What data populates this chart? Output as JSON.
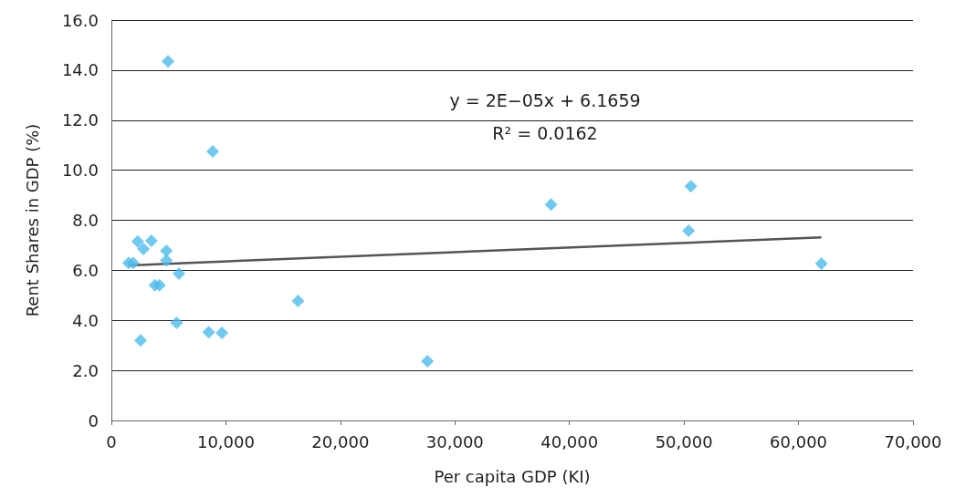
{
  "chart_data": {
    "type": "scatter",
    "xlabel": "Per capita GDP (KI)",
    "ylabel": "Rent Shares in GDP (%)",
    "xlim": [
      0,
      70000
    ],
    "ylim": [
      0,
      16
    ],
    "xticks": [
      0,
      {
        "value": 10000,
        "label": "10,000"
      },
      {
        "value": 20000,
        "label": "20,000"
      },
      {
        "value": 30000,
        "label": "30,000"
      },
      {
        "value": 40000,
        "label": "40,000"
      },
      {
        "value": 50000,
        "label": "50,000"
      },
      {
        "value": 60000,
        "label": "60,000"
      },
      {
        "value": 70000,
        "label": "70,000"
      }
    ],
    "yticks": [
      0,
      {
        "value": 2,
        "label": "2.0"
      },
      {
        "value": 4,
        "label": "4.0"
      },
      {
        "value": 6,
        "label": "6.0"
      },
      {
        "value": 8,
        "label": "8.0"
      },
      {
        "value": 10,
        "label": "10.0"
      },
      {
        "value": 12,
        "label": "12.0"
      },
      {
        "value": 14,
        "label": "14.0"
      },
      {
        "value": 16,
        "label": "16.0"
      }
    ],
    "grid": "y",
    "marker": "diamond",
    "annotations": [
      "y = 2E−05x + 6.1659",
      "R² = 0.0162"
    ],
    "series": [
      {
        "color": "#4dbbeb",
        "x": [
          1500,
          1900,
          2300,
          2800,
          3500,
          4800,
          4800,
          5900,
          3800,
          4200,
          5700,
          2550,
          8500,
          9650,
          16300,
          4950,
          8850,
          27600,
          38400,
          50400,
          50600,
          62000
        ],
        "values": [
          6.3,
          6.3,
          7.15,
          6.85,
          7.18,
          6.78,
          6.4,
          5.87,
          5.4,
          5.4,
          3.9,
          3.2,
          3.53,
          3.5,
          4.77,
          14.35,
          10.75,
          2.37,
          8.63,
          7.58,
          9.36,
          6.27
        ]
      },
      {
        "type": "line",
        "color": "#555555",
        "marker": "none",
        "x": [
          1500,
          62000
        ],
        "values": [
          6.2,
          7.32
        ]
      }
    ]
  }
}
